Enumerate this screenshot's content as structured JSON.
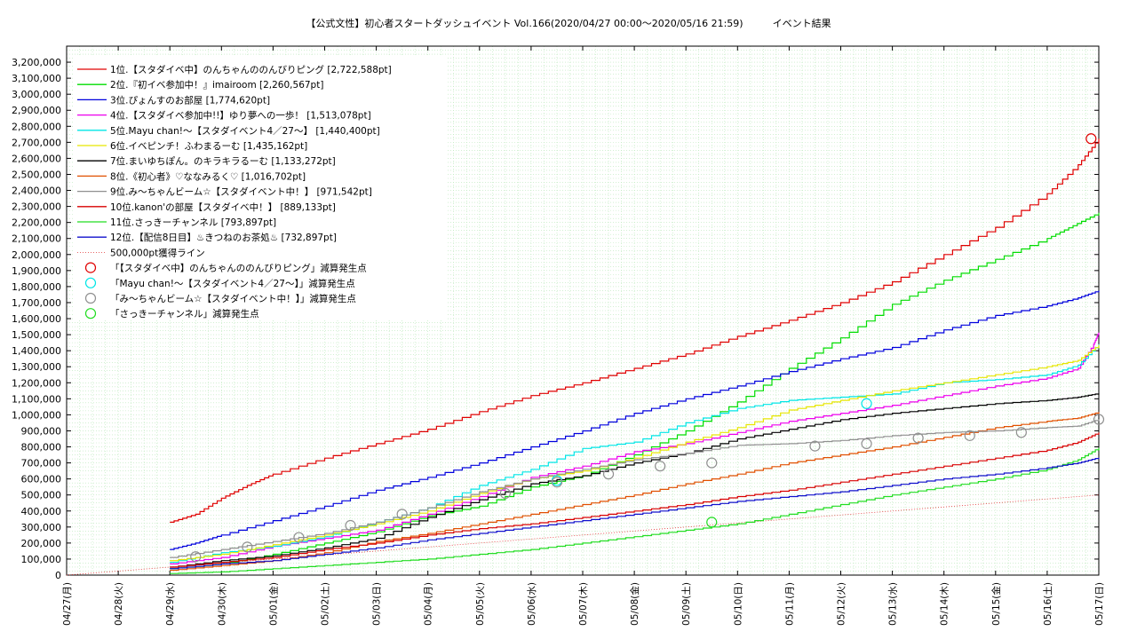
{
  "chart_data": {
    "type": "line",
    "title": "【公式文性】初心者スタートダッシュイベント Vol.166(2020/04/27 00:00～2020/05/16 21:59)　　　イベント結果",
    "xlabel": "",
    "ylabel": "",
    "ylim": [
      0,
      3300000
    ],
    "xlim": [
      "04/27",
      "05/17"
    ],
    "grid": true,
    "legend_position": "top-left",
    "x_ticks": [
      "04/27(月)",
      "04/28(火)",
      "04/29(水)",
      "04/30(木)",
      "05/01(金)",
      "05/02(土)",
      "05/03(日)",
      "05/04(月)",
      "05/05(火)",
      "05/06(水)",
      "05/07(木)",
      "05/08(金)",
      "05/09(土)",
      "05/10(日)",
      "05/11(月)",
      "05/12(火)",
      "05/13(水)",
      "05/14(木)",
      "05/15(金)",
      "05/16(土)",
      "05/17(日)"
    ],
    "y_ticks": [
      "0",
      "100,000",
      "200,000",
      "300,000",
      "400,000",
      "500,000",
      "600,000",
      "700,000",
      "800,000",
      "900,000",
      "1,000,000",
      "1,100,000",
      "1,200,000",
      "1,300,000",
      "1,400,000",
      "1,500,000",
      "1,600,000",
      "1,700,000",
      "1,800,000",
      "1,900,000",
      "2,000,000",
      "2,100,000",
      "2,200,000",
      "2,300,000",
      "2,400,000",
      "2,500,000",
      "2,600,000",
      "2,700,000",
      "2,800,000",
      "2,900,000",
      "3,000,000",
      "3,100,000",
      "3,200,000"
    ],
    "series": [
      {
        "name": "1位.【スタダイベ中】のんちゃんののんびりピング [2,722,588pt]",
        "color": "#e00000",
        "x": [
          2.0,
          2.5,
          3,
          3.5,
          4,
          5,
          6,
          7,
          8,
          9,
          10,
          11,
          12,
          13,
          14,
          15,
          16,
          17,
          18,
          19,
          19.6,
          20
        ],
        "y": [
          330000,
          380000,
          480000,
          560000,
          630000,
          730000,
          820000,
          910000,
          1020000,
          1120000,
          1200000,
          1290000,
          1380000,
          1490000,
          1590000,
          1700000,
          1830000,
          2000000,
          2170000,
          2380000,
          2560000,
          2722588
        ]
      },
      {
        "name": "2位.『初イベ参加中！』imairoom [2,260,567pt]",
        "color": "#00dd00",
        "x": [
          2,
          3,
          4,
          5,
          6,
          7,
          8,
          9,
          10,
          11,
          12,
          13,
          14,
          15,
          16,
          17,
          18,
          19,
          19.5,
          20
        ],
        "y": [
          40000,
          70000,
          130000,
          200000,
          270000,
          370000,
          430000,
          550000,
          620000,
          750000,
          900000,
          1080000,
          1290000,
          1480000,
          1690000,
          1840000,
          1970000,
          2100000,
          2180000,
          2260567
        ]
      },
      {
        "name": "3位.ぴょんすのお部屋 [1,774,620pt]",
        "color": "#0000dd",
        "x": [
          2,
          2.5,
          3,
          4,
          5,
          6,
          7,
          8,
          9,
          10,
          11,
          12,
          13,
          14,
          15,
          16,
          17,
          18,
          19,
          19.6,
          20
        ],
        "y": [
          160000,
          200000,
          250000,
          340000,
          430000,
          530000,
          610000,
          700000,
          800000,
          900000,
          1010000,
          1100000,
          1180000,
          1270000,
          1350000,
          1420000,
          1530000,
          1620000,
          1680000,
          1730000,
          1774620
        ]
      },
      {
        "name": "4位.【スタダイベ参加中!!】ゆり夢への一歩！ [1,513,078pt]",
        "color": "#ee00ee",
        "x": [
          2,
          3,
          4,
          5,
          6,
          7,
          8,
          9,
          10,
          11,
          12,
          13,
          14,
          15,
          16,
          17,
          18,
          19,
          19.6,
          19.9,
          20
        ],
        "y": [
          70000,
          110000,
          180000,
          230000,
          280000,
          380000,
          490000,
          610000,
          680000,
          770000,
          820000,
          890000,
          960000,
          1010000,
          1060000,
          1120000,
          1180000,
          1230000,
          1290000,
          1440000,
          1513078
        ]
      },
      {
        "name": "5位.Mayu chan!～【スタダイベント4／27～】 [1,440,400pt]",
        "color": "#00e6e6",
        "x": [
          2,
          3,
          4,
          5,
          6,
          7,
          8,
          9,
          10,
          11,
          12,
          13,
          14,
          15,
          16,
          17,
          18,
          19,
          19.6,
          20
        ],
        "y": [
          80000,
          140000,
          180000,
          240000,
          330000,
          420000,
          560000,
          660000,
          790000,
          830000,
          950000,
          1040000,
          1090000,
          1110000,
          1130000,
          1200000,
          1220000,
          1250000,
          1310000,
          1440400
        ]
      },
      {
        "name": "6位.イベピンチ！ふわまるーむ [1,435,162pt]",
        "color": "#e6e600",
        "x": [
          2,
          3,
          4,
          5,
          6,
          7,
          8,
          9,
          10,
          11,
          12,
          13,
          14,
          15,
          16,
          17,
          18,
          19,
          19.6,
          20
        ],
        "y": [
          90000,
          130000,
          190000,
          250000,
          320000,
          400000,
          510000,
          600000,
          650000,
          730000,
          830000,
          920000,
          1030000,
          1090000,
          1150000,
          1200000,
          1250000,
          1300000,
          1340000,
          1435162
        ]
      },
      {
        "name": "7位.まいゆちぽん。のキラキラるーむ [1,133,272pt]",
        "color": "#000000",
        "x": [
          2,
          3,
          4,
          5,
          6,
          7,
          8,
          9,
          10,
          11,
          12,
          13,
          14,
          15,
          16,
          17,
          18,
          19,
          19.6,
          20
        ],
        "y": [
          50000,
          90000,
          120000,
          170000,
          230000,
          360000,
          470000,
          570000,
          620000,
          700000,
          760000,
          850000,
          910000,
          970000,
          1010000,
          1040000,
          1070000,
          1090000,
          1110000,
          1133272
        ]
      },
      {
        "name": "8位.《初心者》♡ななみるく♡ [1,016,702pt]",
        "color": "#e05000",
        "x": [
          2,
          3,
          4,
          5,
          6,
          7,
          8,
          9,
          10,
          11,
          12,
          13,
          14,
          15,
          16,
          17,
          18,
          19,
          19.6,
          20
        ],
        "y": [
          30000,
          60000,
          90000,
          140000,
          210000,
          260000,
          320000,
          380000,
          440000,
          500000,
          570000,
          630000,
          700000,
          750000,
          800000,
          860000,
          920000,
          960000,
          980000,
          1016702
        ]
      },
      {
        "name": "9位.み～ちゃんビーム☆【スタダイベント中！】 [971,542pt]",
        "color": "#909090",
        "x": [
          2,
          3,
          4,
          5,
          6,
          7,
          8,
          9,
          10,
          11,
          12,
          13,
          14,
          15,
          16,
          17,
          18,
          19,
          19.6,
          20
        ],
        "y": [
          110000,
          160000,
          210000,
          260000,
          330000,
          420000,
          520000,
          600000,
          660000,
          720000,
          760000,
          810000,
          820000,
          840000,
          870000,
          890000,
          900000,
          920000,
          930000,
          971542
        ]
      },
      {
        "name": "10位.kanon'の部屋【スタダイベ中！】 [889,133pt]",
        "color": "#d80000",
        "x": [
          2,
          3,
          4,
          5,
          6,
          7,
          8,
          9,
          10,
          11,
          12,
          13,
          14,
          15,
          16,
          17,
          18,
          19,
          19.6,
          20
        ],
        "y": [
          50000,
          80000,
          110000,
          160000,
          200000,
          250000,
          290000,
          320000,
          360000,
          400000,
          440000,
          490000,
          530000,
          580000,
          630000,
          680000,
          730000,
          780000,
          830000,
          889133
        ]
      },
      {
        "name": "11位.さっきーチャンネル [793,897pt]",
        "color": "#22dd22",
        "x": [
          2,
          3,
          4,
          5,
          6,
          7,
          8,
          9,
          10,
          11,
          12,
          13,
          14,
          15,
          16,
          17,
          18,
          19,
          19.6,
          20
        ],
        "y": [
          10000,
          20000,
          40000,
          60000,
          80000,
          100000,
          130000,
          160000,
          200000,
          240000,
          280000,
          320000,
          380000,
          440000,
          500000,
          550000,
          600000,
          660000,
          720000,
          793897
        ]
      },
      {
        "name": "12位.【配信8日目】♨きつねのお茶処♨ [732,897pt]",
        "color": "#1010cc",
        "x": [
          2,
          3,
          4,
          5,
          6,
          7,
          8,
          9,
          10,
          11,
          12,
          13,
          14,
          15,
          16,
          17,
          18,
          19,
          19.6,
          20
        ],
        "y": [
          40000,
          70000,
          90000,
          130000,
          170000,
          220000,
          260000,
          300000,
          340000,
          380000,
          420000,
          460000,
          490000,
          520000,
          560000,
          600000,
          630000,
          670000,
          700000,
          732897
        ]
      }
    ],
    "threshold": {
      "label": "500,000pt獲得ライン",
      "color": "#e03030",
      "x": [
        0,
        20
      ],
      "y": [
        0,
        500000
      ]
    },
    "markers": [
      {
        "label": "「【スタダイベ中】のんちゃんののんびりピング」減算発生点",
        "color": "#e00000",
        "points": [
          {
            "x": 19.85,
            "y": 2722588
          }
        ]
      },
      {
        "label": "「Mayu chan!～【スタダイベント4／27～】」減算発生点",
        "color": "#00e6e6",
        "points": [
          {
            "x": 15.5,
            "y": 1070000
          },
          {
            "x": 9.5,
            "y": 590000
          }
        ]
      },
      {
        "label": "「み～ちゃんビーム☆【スタダイベント中！】」減算発生点",
        "color": "#909090",
        "points": [
          {
            "x": 2.5,
            "y": 115000
          },
          {
            "x": 3.5,
            "y": 175000
          },
          {
            "x": 4.5,
            "y": 235000
          },
          {
            "x": 5.5,
            "y": 310000
          },
          {
            "x": 6.5,
            "y": 380000
          },
          {
            "x": 8.5,
            "y": 510000
          },
          {
            "x": 9.5,
            "y": 580000
          },
          {
            "x": 10.5,
            "y": 630000
          },
          {
            "x": 11.5,
            "y": 680000
          },
          {
            "x": 12.5,
            "y": 700000
          },
          {
            "x": 14.5,
            "y": 805000
          },
          {
            "x": 15.5,
            "y": 820000
          },
          {
            "x": 16.5,
            "y": 855000
          },
          {
            "x": 17.5,
            "y": 870000
          },
          {
            "x": 18.5,
            "y": 890000
          },
          {
            "x": 20,
            "y": 971542
          }
        ]
      },
      {
        "label": "「さっきーチャンネル」減算発生点",
        "color": "#22dd22",
        "points": [
          {
            "x": 12.5,
            "y": 330000
          }
        ]
      }
    ]
  }
}
